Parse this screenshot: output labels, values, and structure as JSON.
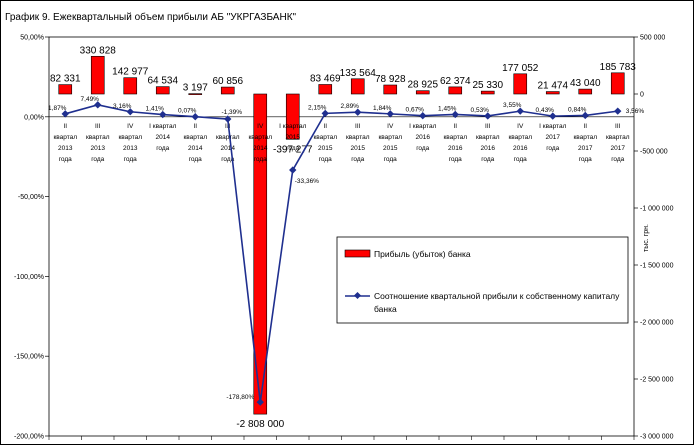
{
  "chart_data": {
    "type": "bar",
    "title": "График 9. Ежеквартальный объем прибыли АБ \"УКРГАЗБАНК\"",
    "y2_unit_label": "тыс. грн.",
    "categories": [
      [
        "II",
        "квартал",
        "2013",
        "года"
      ],
      [
        "III",
        "квартал",
        "2013",
        "года"
      ],
      [
        "IV",
        "квартал",
        "2013",
        "года"
      ],
      [
        "I квартал",
        "2014",
        "года"
      ],
      [
        "II",
        "квартал",
        "2014",
        "года"
      ],
      [
        "III",
        "квартал",
        "2014",
        "года"
      ],
      [
        "IV",
        "квартал",
        "2014",
        "года"
      ],
      [
        "I квартал",
        "2015",
        "года"
      ],
      [
        "II",
        "квартал",
        "2015",
        "года"
      ],
      [
        "III",
        "квартал",
        "2015",
        "года"
      ],
      [
        "IV",
        "квартал",
        "2015",
        "года"
      ],
      [
        "I квартал",
        "2016",
        "года"
      ],
      [
        "II",
        "квартал",
        "2016",
        "года"
      ],
      [
        "III",
        "квартал",
        "2016",
        "года"
      ],
      [
        "IV",
        "квартал",
        "2016",
        "года"
      ],
      [
        "I квартал",
        "2017",
        "года"
      ],
      [
        "II",
        "квартал",
        "2017",
        "года"
      ],
      [
        "III",
        "квартал",
        "2017",
        "года"
      ]
    ],
    "series": [
      {
        "name": "Прибыль (убыток)  банка",
        "type": "bar",
        "axis": "right",
        "color": "#ff0000",
        "values": [
          82331,
          330828,
          142977,
          64534,
          3197,
          60856,
          -2808000,
          -397277,
          83469,
          133564,
          78928,
          28925,
          62374,
          25330,
          177052,
          21474,
          43040,
          185783
        ],
        "labels": [
          "82 331",
          "330 828",
          "142 977",
          "64 534",
          "3 197",
          "60 856",
          "-2 808 000",
          "-397 277",
          "83 469",
          "133 564",
          "78 928",
          "28 925",
          "62 374",
          "25 330",
          "177 052",
          "21 474",
          "43 040",
          "185 783"
        ]
      },
      {
        "name": "Соотношение квартальной прибыли к собственному капиталу банка",
        "type": "line",
        "axis": "left",
        "color": "#1f2f8f",
        "values": [
          1.87,
          7.49,
          3.16,
          1.41,
          0.07,
          -1.39,
          -178.8,
          -33.36,
          2.15,
          2.89,
          1.84,
          0.67,
          1.45,
          0.53,
          3.55,
          0.43,
          0.84,
          3.56
        ],
        "labels": [
          "1,87%",
          "7,49%",
          "3,16%",
          "1,41%",
          "0,07%",
          "-1,39%",
          "-178,80%",
          "-33,36%",
          "2,15%",
          "2,89%",
          "1,84%",
          "0,67%",
          "1,45%",
          "0,53%",
          "3,55%",
          "0,43%",
          "0,84%",
          "3,56%"
        ]
      }
    ],
    "y_left": {
      "range": [
        -200,
        50
      ],
      "ticks": [
        50,
        0,
        -50,
        -100,
        -150,
        -200
      ],
      "tick_labels": [
        "50,00%",
        "0,00%",
        "-50,00%",
        "-100,00%",
        "-150,00%",
        "-200,00%"
      ]
    },
    "y_right": {
      "range": [
        -3000000,
        500000
      ],
      "ticks": [
        500000,
        0,
        -500000,
        -1000000,
        -1500000,
        -2000000,
        -2500000,
        -3000000
      ],
      "tick_labels": [
        "500 000",
        "0",
        "-500 000",
        "-1 000 000",
        "-1 500 000",
        "-2 000 000",
        "-2 500 000",
        "-3 000 000"
      ]
    },
    "legend_position": "right-middle",
    "grid": false
  }
}
